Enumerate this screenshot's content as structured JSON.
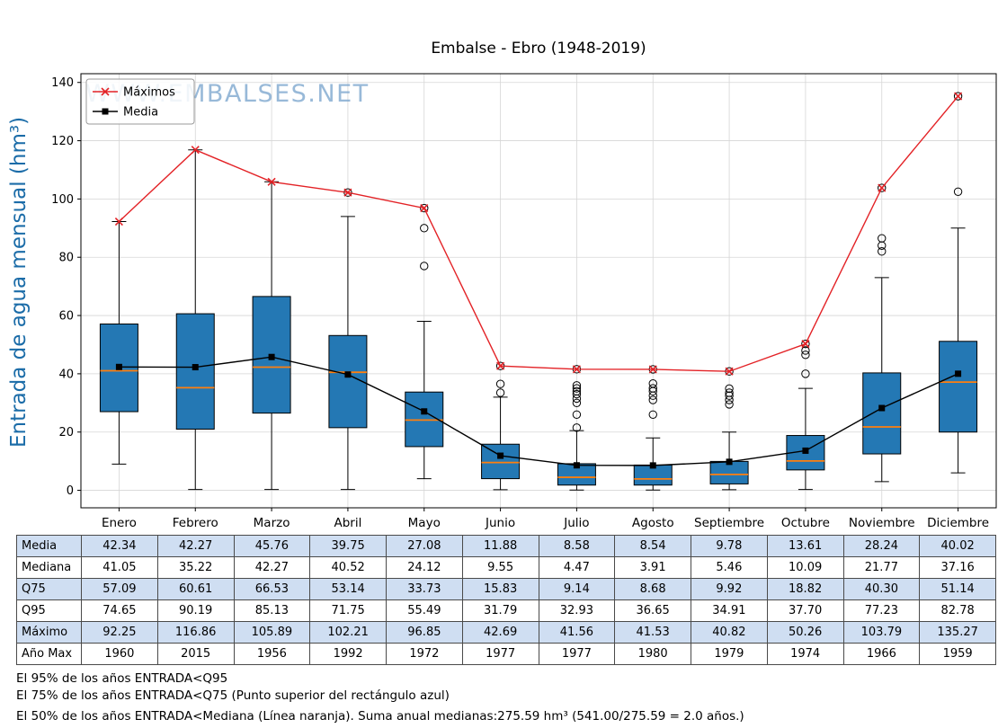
{
  "title": "Embalse - Ebro (1948-2019)",
  "watermark": "WWW.EMBALSES.NET",
  "chart_data": {
    "type": "boxplot",
    "title": "Embalse - Ebro (1948-2019)",
    "ylabel": "Entrada de agua mensual (hm³)",
    "ylim": [
      -6,
      143
    ],
    "yticks": [
      0,
      20,
      40,
      60,
      80,
      100,
      120,
      140
    ],
    "grid": true,
    "legend_position": "upper-left",
    "categories": [
      "Enero",
      "Febrero",
      "Marzo",
      "Abril",
      "Mayo",
      "Junio",
      "Julio",
      "Agosto",
      "Septiembre",
      "Octubre",
      "Noviembre",
      "Diciembre"
    ],
    "legend": [
      {
        "label": "Máximos",
        "color": "#e32226",
        "marker": "x"
      },
      {
        "label": "Media",
        "color": "#000000",
        "marker": "square"
      }
    ],
    "colors": {
      "box": "#2478b4",
      "median": "#ff7f0e",
      "max_line": "#e32226",
      "mean_line": "#000000",
      "watermark": "#7fa8cf",
      "ylabel": "#1b6ca8",
      "table_alt": "#cfdef2",
      "grid": "#d6d6d6"
    },
    "boxes": [
      {
        "month": "Enero",
        "q1": 27.0,
        "median": 41.05,
        "q3": 57.09,
        "whisker_low": 9.0,
        "whisker_high": 92.25,
        "outliers": []
      },
      {
        "month": "Febrero",
        "q1": 21.0,
        "median": 35.22,
        "q3": 60.61,
        "whisker_low": 0.3,
        "whisker_high": 116.86,
        "outliers": []
      },
      {
        "month": "Marzo",
        "q1": 26.5,
        "median": 42.27,
        "q3": 66.53,
        "whisker_low": 0.3,
        "whisker_high": 105.89,
        "outliers": []
      },
      {
        "month": "Abril",
        "q1": 21.5,
        "median": 40.52,
        "q3": 53.14,
        "whisker_low": 0.3,
        "whisker_high": 94.0,
        "outliers": [
          102.21
        ]
      },
      {
        "month": "Mayo",
        "q1": 15.0,
        "median": 24.12,
        "q3": 33.73,
        "whisker_low": 4.0,
        "whisker_high": 58.0,
        "outliers": [
          77.0,
          90.0,
          96.85
        ]
      },
      {
        "month": "Junio",
        "q1": 4.0,
        "median": 9.55,
        "q3": 15.83,
        "whisker_low": 0.2,
        "whisker_high": 32.0,
        "outliers": [
          33.5,
          36.5,
          42.69
        ]
      },
      {
        "month": "Julio",
        "q1": 1.8,
        "median": 4.47,
        "q3": 9.14,
        "whisker_low": 0.1,
        "whisker_high": 20.5,
        "outliers": [
          21.5,
          26.0,
          30.0,
          31.5,
          33.0,
          34.0,
          35.0,
          36.0,
          41.56
        ]
      },
      {
        "month": "Agosto",
        "q1": 1.8,
        "median": 3.91,
        "q3": 8.68,
        "whisker_low": 0.1,
        "whisker_high": 18.0,
        "outliers": [
          26.0,
          31.0,
          32.5,
          34.0,
          35.0,
          36.65,
          41.53
        ]
      },
      {
        "month": "Septiembre",
        "q1": 2.2,
        "median": 5.46,
        "q3": 9.92,
        "whisker_low": 0.2,
        "whisker_high": 20.0,
        "outliers": [
          29.5,
          31.0,
          32.5,
          33.5,
          34.91,
          40.82
        ]
      },
      {
        "month": "Octubre",
        "q1": 7.0,
        "median": 10.09,
        "q3": 18.82,
        "whisker_low": 0.3,
        "whisker_high": 35.0,
        "outliers": [
          40.0,
          46.5,
          48.0,
          50.26
        ]
      },
      {
        "month": "Noviembre",
        "q1": 12.5,
        "median": 21.77,
        "q3": 40.3,
        "whisker_low": 3.0,
        "whisker_high": 73.0,
        "outliers": [
          82.0,
          84.0,
          86.5,
          103.79
        ]
      },
      {
        "month": "Diciembre",
        "q1": 20.0,
        "median": 37.16,
        "q3": 51.14,
        "whisker_low": 6.0,
        "whisker_high": 90.0,
        "outliers": [
          102.5,
          135.27
        ]
      }
    ],
    "maximos": [
      92.25,
      116.86,
      105.89,
      102.21,
      96.85,
      42.69,
      41.56,
      41.53,
      40.82,
      50.26,
      103.79,
      135.27
    ],
    "medias": [
      42.34,
      42.27,
      45.76,
      39.75,
      27.08,
      11.88,
      8.58,
      8.54,
      9.78,
      13.61,
      28.24,
      40.02
    ]
  },
  "table": {
    "columns": [
      "Enero",
      "Febrero",
      "Marzo",
      "Abril",
      "Mayo",
      "Junio",
      "Julio",
      "Agosto",
      "Septiembre",
      "Octubre",
      "Noviembre",
      "Diciembre"
    ],
    "row_labels": [
      "Media",
      "Mediana",
      "Q75",
      "Q95",
      "Máximo",
      "Año Max"
    ],
    "rows": [
      [
        "42.34",
        "42.27",
        "45.76",
        "39.75",
        "27.08",
        "11.88",
        "8.58",
        "8.54",
        "9.78",
        "13.61",
        "28.24",
        "40.02"
      ],
      [
        "41.05",
        "35.22",
        "42.27",
        "40.52",
        "24.12",
        "9.55",
        "4.47",
        "3.91",
        "5.46",
        "10.09",
        "21.77",
        "37.16"
      ],
      [
        "57.09",
        "60.61",
        "66.53",
        "53.14",
        "33.73",
        "15.83",
        "9.14",
        "8.68",
        "9.92",
        "18.82",
        "40.30",
        "51.14"
      ],
      [
        "74.65",
        "90.19",
        "85.13",
        "71.75",
        "55.49",
        "31.79",
        "32.93",
        "36.65",
        "34.91",
        "37.70",
        "77.23",
        "82.78"
      ],
      [
        "92.25",
        "116.86",
        "105.89",
        "102.21",
        "96.85",
        "42.69",
        "41.56",
        "41.53",
        "40.82",
        "50.26",
        "103.79",
        "135.27"
      ],
      [
        "1960",
        "2015",
        "1956",
        "1992",
        "1972",
        "1977",
        "1977",
        "1980",
        "1979",
        "1974",
        "1966",
        "1959"
      ]
    ]
  },
  "footnotes": [
    "El 95% de los años ENTRADA<Q95",
    "El 75% de los años ENTRADA<Q75 (Punto superior del rectángulo azul)",
    "El 50% de los años ENTRADA<Mediana (Línea naranja). Suma anual medianas:275.59 hm³ (541.00/275.59 = 2.0 años.)"
  ]
}
